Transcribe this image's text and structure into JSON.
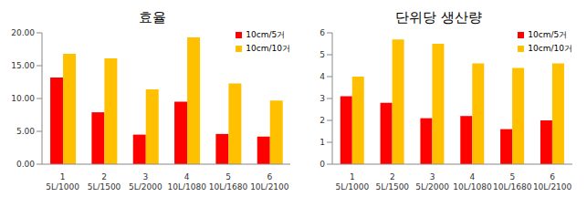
{
  "chart_data": [
    {
      "type": "bar",
      "title": "효율",
      "categories": [
        "1\n5L/1000",
        "2\n5L/1500",
        "3\n5L/2000",
        "4\n10L/1080",
        "5\n10L/1680",
        "6\n10L/2100"
      ],
      "series": [
        {
          "name": "10cm/5거",
          "color": "#ff0000",
          "values": [
            13.2,
            7.9,
            4.5,
            9.5,
            4.6,
            4.2
          ]
        },
        {
          "name": "10cm/10거",
          "color": "#ffc000",
          "values": [
            16.8,
            16.1,
            11.4,
            19.3,
            12.3,
            9.7
          ]
        }
      ],
      "ylim": [
        0,
        20
      ],
      "yticks": [
        {
          "value": 0,
          "label": "0.00"
        },
        {
          "value": 5,
          "label": "5.00"
        },
        {
          "value": 10,
          "label": "10.00"
        },
        {
          "value": 15,
          "label": "15.00"
        },
        {
          "value": 20,
          "label": "20.00"
        }
      ],
      "grid": false,
      "legend": "upper right"
    },
    {
      "type": "bar",
      "title": "단위당 생산량",
      "categories": [
        "1\n5L/1000",
        "2\n5L/1500",
        "3\n5L/2000",
        "4\n10L/1080",
        "5\n10L/1680",
        "6\n10L/2100"
      ],
      "series": [
        {
          "name": "10cm/5거",
          "color": "#ff0000",
          "values": [
            3.1,
            2.8,
            2.1,
            2.2,
            1.6,
            2.0
          ]
        },
        {
          "name": "10cm/10거",
          "color": "#ffc000",
          "values": [
            4.0,
            5.7,
            5.5,
            4.6,
            4.4,
            4.6
          ]
        }
      ],
      "ylim": [
        0,
        6
      ],
      "yticks": [
        0,
        1,
        2,
        3,
        4,
        5,
        6
      ],
      "grid": false,
      "legend": "upper right"
    }
  ]
}
